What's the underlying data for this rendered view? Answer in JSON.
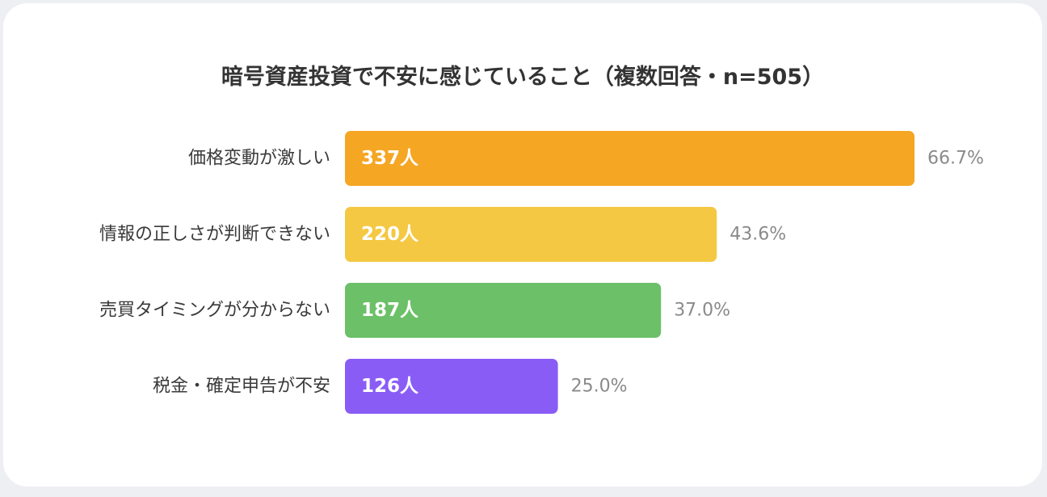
{
  "chart_data": {
    "type": "bar",
    "orientation": "horizontal",
    "title": "暗号資産投資で不安に感じていること（複数回答・n=505）",
    "categories": [
      "価格変動が激しい",
      "情報の正しさが判断できない",
      "売買タイミングが分からない",
      "税金・確定申告が不安"
    ],
    "values": [
      337,
      220,
      187,
      126
    ],
    "value_labels": [
      "337人",
      "220人",
      "187人",
      "126人"
    ],
    "percent_labels": [
      "66.7%",
      "43.6%",
      "37.0%",
      "25.0%"
    ],
    "colors": [
      "#f5a623",
      "#f4c842",
      "#6cc067",
      "#8a5cf6"
    ],
    "xlim": [
      0,
      337
    ],
    "grid": false,
    "legend": "none"
  }
}
